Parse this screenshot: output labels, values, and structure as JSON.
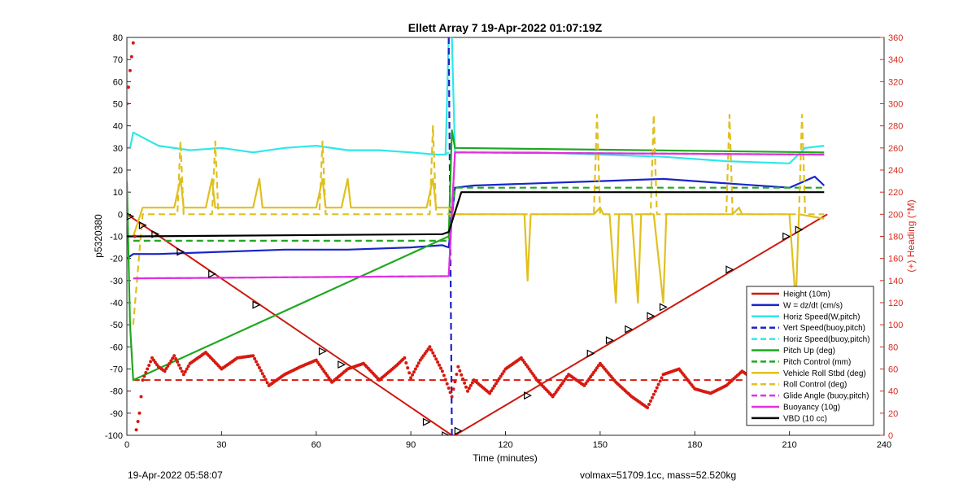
{
  "chart_data": {
    "type": "line",
    "title": "Ellett Array 7 19-Apr-2022 01:07:19Z",
    "xlabel": "Time (minutes)",
    "ylabel": "p5320380",
    "y2label": "(+) Heading (°M)",
    "xlim": [
      0,
      240
    ],
    "ylim": [
      -100,
      80
    ],
    "y2lim": [
      0,
      360
    ],
    "xticks": [
      0,
      30,
      60,
      90,
      120,
      150,
      180,
      210,
      240
    ],
    "yticks": [
      80,
      70,
      60,
      50,
      40,
      30,
      20,
      10,
      0,
      -10,
      -20,
      -30,
      -40,
      -50,
      -60,
      -70,
      -80,
      -90,
      -100
    ],
    "y2ticks": [
      360,
      340,
      320,
      300,
      280,
      260,
      240,
      220,
      200,
      180,
      160,
      140,
      120,
      100,
      80,
      60,
      40,
      20,
      0
    ],
    "grid": false,
    "legend_position": "bottom-right",
    "series": [
      {
        "name": "Height (10m)",
        "color": "#cc1a10",
        "style": "solid",
        "x": [
          0,
          103,
          104,
          222
        ],
        "y": [
          0,
          -100,
          -100,
          0
        ]
      },
      {
        "name": "W = dz/dt (cm/s)",
        "color": "#1a24c8",
        "style": "solid",
        "x": [
          0,
          2,
          10,
          30,
          50,
          70,
          90,
          100,
          102,
          104,
          110,
          130,
          150,
          170,
          190,
          210,
          218,
          221
        ],
        "y": [
          -20,
          -18,
          -18,
          -17,
          -16,
          -16,
          -15,
          -14,
          -15,
          12,
          13,
          14,
          15,
          16,
          14,
          12,
          17,
          13
        ]
      },
      {
        "name": "Horiz Speed(W,pitch)",
        "color": "#2ee8e8",
        "style": "solid",
        "x": [
          1,
          2,
          10,
          20,
          30,
          40,
          50,
          60,
          70,
          80,
          90,
          98,
          101,
          102,
          103,
          104,
          110,
          130,
          150,
          170,
          190,
          210,
          215,
          221
        ],
        "y": [
          30,
          37,
          31,
          29,
          30,
          28,
          30,
          31,
          29,
          29,
          28,
          27,
          27,
          80,
          80,
          28,
          28,
          28,
          27,
          26,
          24,
          23,
          30,
          31
        ]
      },
      {
        "name": "Vert Speed(buoy,pitch)",
        "color": "#1a24c8",
        "style": "dashed",
        "x": [
          102,
          103,
          103.5
        ],
        "y": [
          80,
          -100,
          -100
        ]
      },
      {
        "name": "Horiz Speed(buoy,pitch)",
        "color": "#2ee8e8",
        "style": "dashed",
        "x": [
          101,
          102
        ],
        "y": [
          27,
          28
        ]
      },
      {
        "name": "Pitch Up (deg)",
        "color": "#1fa81f",
        "style": "solid",
        "x": [
          0,
          1,
          2,
          102,
          103,
          104,
          221
        ],
        "y": [
          15,
          -50,
          -75,
          -10,
          38,
          30,
          28
        ]
      },
      {
        "name": "Pitch Control (mm)",
        "color": "#1fa81f",
        "style": "dashed",
        "x": [
          2,
          102,
          104,
          221
        ],
        "y": [
          -12,
          -12,
          12,
          12
        ]
      },
      {
        "name": "Vehicle Roll Stbd (deg)",
        "color": "#e0c020",
        "style": "solid",
        "x": [
          2,
          5,
          8,
          15,
          17,
          18,
          25,
          27,
          28,
          40,
          42,
          43,
          60,
          62,
          63,
          68,
          70,
          71,
          95,
          97,
          98,
          102,
          104,
          110,
          126,
          127,
          128,
          148,
          150,
          151,
          153,
          155,
          156,
          160,
          162,
          163,
          167,
          170,
          171,
          192,
          194,
          195,
          210,
          212,
          213,
          221
        ],
        "y": [
          -10,
          3,
          3,
          3,
          16,
          3,
          3,
          16,
          3,
          3,
          16,
          3,
          3,
          16,
          3,
          3,
          16,
          3,
          3,
          16,
          3,
          3,
          0,
          0,
          0,
          -30,
          0,
          0,
          3,
          0,
          0,
          -40,
          0,
          0,
          -40,
          0,
          0,
          -40,
          0,
          0,
          3,
          0,
          0,
          -40,
          0,
          -2
        ]
      },
      {
        "name": "Roll Control (deg)",
        "color": "#e0c020",
        "style": "dashed",
        "x": [
          2,
          5,
          16,
          17,
          18,
          27,
          28,
          29,
          61,
          62,
          63,
          96,
          97,
          98,
          102,
          104,
          148,
          149,
          150,
          166,
          167,
          168,
          190,
          191,
          192,
          213,
          214,
          215,
          221
        ],
        "y": [
          -50,
          0,
          0,
          33,
          0,
          0,
          33,
          0,
          0,
          33,
          0,
          0,
          40,
          0,
          0,
          0,
          0,
          45,
          0,
          0,
          45,
          0,
          0,
          45,
          0,
          0,
          45,
          0,
          0
        ]
      },
      {
        "name": "Glide Angle (buoy,pitch)",
        "color": "#e030e0",
        "style": "dashed",
        "x": [
          2,
          102,
          104,
          221
        ],
        "y": [
          -29,
          -28,
          28,
          27
        ]
      },
      {
        "name": "Buoyancy (10g)",
        "color": "#e030e0",
        "style": "solid",
        "x": [
          2,
          102,
          104,
          221
        ],
        "y": [
          -29,
          -28,
          28,
          27
        ]
      },
      {
        "name": "VBD (10 cc)",
        "color": "#000000",
        "style": "solid",
        "x": [
          0,
          2,
          100,
          102,
          106,
          221
        ],
        "y": [
          -10,
          -10,
          -9,
          -8,
          10,
          10
        ]
      }
    ],
    "heading": {
      "name": "Heading (°M)",
      "color": "#d61a10",
      "axis": "right",
      "reference": 50,
      "x": [
        0,
        1,
        2,
        3,
        4,
        5,
        8,
        10,
        12,
        15,
        18,
        20,
        25,
        30,
        35,
        40,
        45,
        50,
        55,
        60,
        65,
        70,
        75,
        80,
        85,
        88,
        90,
        93,
        96,
        100,
        103,
        105,
        108,
        110,
        115,
        120,
        125,
        130,
        135,
        140,
        145,
        150,
        155,
        160,
        165,
        170,
        175,
        180,
        185,
        190,
        195,
        200,
        205,
        210,
        215,
        220
      ],
      "y": [
        300,
        330,
        355,
        5,
        20,
        50,
        70,
        62,
        58,
        72,
        55,
        65,
        75,
        60,
        70,
        72,
        45,
        55,
        62,
        68,
        48,
        60,
        65,
        50,
        62,
        70,
        52,
        68,
        80,
        58,
        35,
        62,
        40,
        50,
        38,
        60,
        70,
        50,
        35,
        55,
        45,
        65,
        48,
        35,
        25,
        55,
        60,
        42,
        38,
        45,
        58,
        48,
        55,
        60,
        70,
        62
      ]
    },
    "markers": {
      "symbol": "triangle",
      "x": [
        1,
        5,
        9,
        17,
        27,
        41,
        62,
        68,
        95,
        101,
        105,
        127,
        147,
        153,
        159,
        166,
        170,
        191,
        209,
        213
      ],
      "y": [
        -1,
        -5,
        -9,
        -17,
        -27,
        -41,
        -62,
        -68,
        -94,
        -100,
        -98,
        -82,
        -63,
        -57,
        -52,
        -46,
        -42,
        -25,
        -10,
        -7
      ]
    }
  },
  "footer": {
    "timestamp": "19-Apr-2022 05:58:07",
    "volume_mass": "volmax=51709.1cc, mass=52.520kg"
  }
}
